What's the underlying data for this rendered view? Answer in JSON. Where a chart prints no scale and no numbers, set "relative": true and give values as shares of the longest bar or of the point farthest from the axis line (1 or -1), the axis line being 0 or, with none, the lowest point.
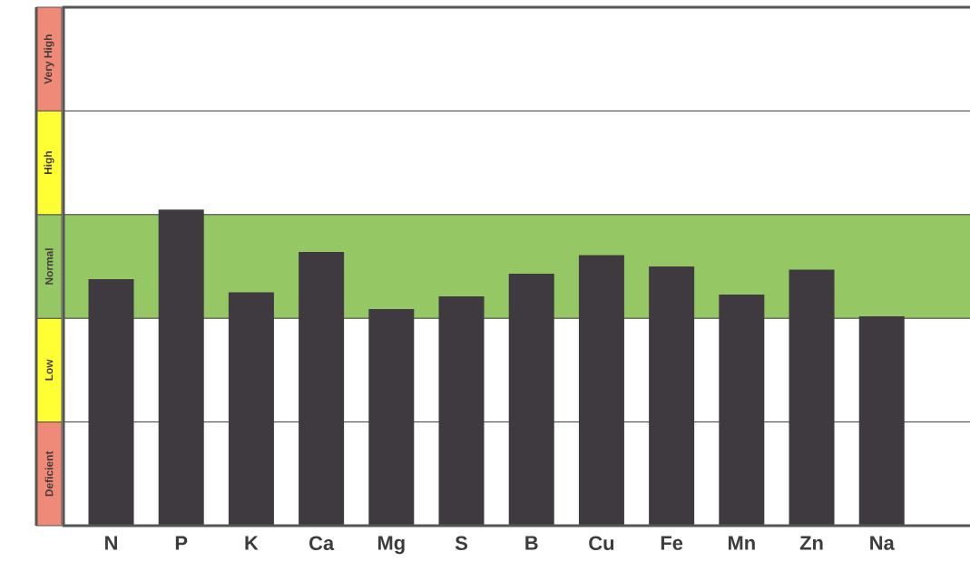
{
  "chart_data": {
    "type": "bar",
    "relative": true,
    "categories": [
      "N",
      "P",
      "K",
      "Ca",
      "Mg",
      "S",
      "B",
      "Cu",
      "Fe",
      "Mn",
      "Zn",
      "Na"
    ],
    "values": [
      0.78,
      1,
      0.738,
      0.866,
      0.685,
      0.725,
      0.797,
      0.856,
      0.82,
      0.731,
      0.81,
      0.662
    ],
    "color": "#3f3a40",
    "grid": "y",
    "bands": [
      {
        "axis": "y",
        "from": 0.656,
        "to": 0.984,
        "label": "Normal",
        "color": "#95c865"
      }
    ],
    "annotations": [
      "Deficient",
      "Low",
      "High",
      "Very High"
    ]
  }
}
